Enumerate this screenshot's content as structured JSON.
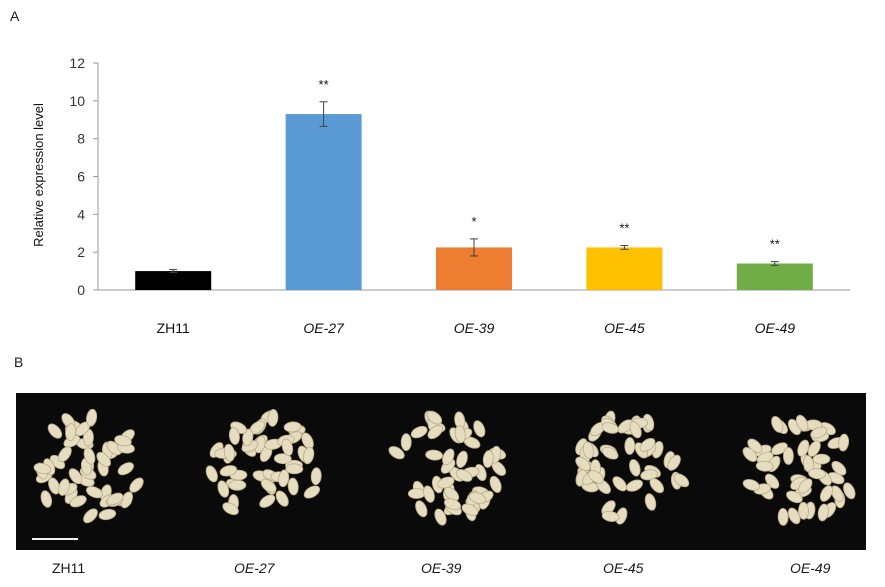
{
  "panels": {
    "a": "A",
    "b": "B"
  },
  "chart_data": {
    "type": "bar",
    "ylabel": "Relative expression level",
    "ylim": [
      0,
      12
    ],
    "yticks": [
      0,
      2,
      4,
      6,
      8,
      10,
      12
    ],
    "categories": [
      "ZH11",
      "OE-27",
      "OE-39",
      "OE-45",
      "OE-49"
    ],
    "italic": [
      false,
      true,
      true,
      true,
      true
    ],
    "values": [
      1.0,
      9.3,
      2.25,
      2.25,
      1.4
    ],
    "errors": [
      0.08,
      0.65,
      0.45,
      0.1,
      0.1
    ],
    "significance": [
      "",
      "**",
      "*",
      "**",
      "**"
    ],
    "colors": [
      "#000000",
      "#5b9bd5",
      "#ed7d31",
      "#ffc000",
      "#70ad47"
    ],
    "grid": false,
    "legend": "none"
  },
  "photo": {
    "labels": [
      "ZH11",
      "OE-27",
      "OE-39",
      "OE-45",
      "OE-49"
    ],
    "background": "#0a0a0a",
    "grain_color": "#e6dcc0"
  }
}
